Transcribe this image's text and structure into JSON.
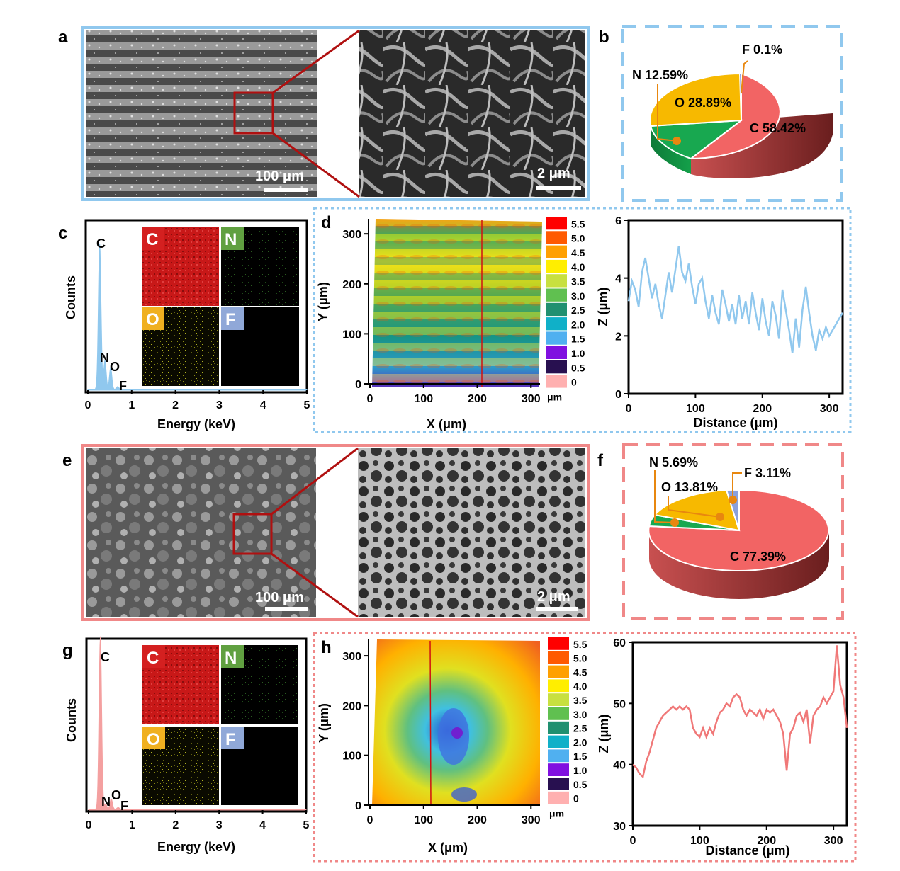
{
  "panel_labels": {
    "a": "a",
    "b": "b",
    "c": "c",
    "d": "d",
    "e": "e",
    "f": "f",
    "g": "g",
    "h": "h"
  },
  "colors": {
    "blue": "#90c8ee",
    "pink": "#f08888",
    "zoom_line": "#b01010",
    "C": "#d42020",
    "N": "#60a040",
    "O": "#f0b020",
    "F": "#90a8d8",
    "slice_C": "#f26464",
    "slice_O": "#f7b900",
    "slice_N": "#18a850",
    "slice_F": "#8aa0dc",
    "leader": "#e8870f"
  },
  "sem": {
    "scale_low": "100 μm",
    "scale_high": "2 μm"
  },
  "eds": {
    "maps": [
      "C",
      "N",
      "O",
      "F"
    ],
    "xlabel": "Energy (keV)",
    "ylabel": "Counts"
  },
  "colorbar": {
    "ticks": [
      "5.5",
      "5.0",
      "4.5",
      "4.0",
      "3.5",
      "3.0",
      "2.5",
      "2.0",
      "1.5",
      "1.0",
      "0.5",
      "0"
    ],
    "unit": "μm",
    "colors": [
      "#ff0000",
      "#ff5a00",
      "#ffa000",
      "#ffee00",
      "#c8e040",
      "#60c050",
      "#209070",
      "#10b0c8",
      "#50b0f0",
      "#8010e0",
      "#281050",
      "#ffb0b0"
    ]
  },
  "chart_data": [
    {
      "type": "pie",
      "panel": "b",
      "slices": [
        {
          "label": "C 58.42%",
          "value": 58.42
        },
        {
          "label": "O 28.89%",
          "value": 28.89
        },
        {
          "label": "N 12.59%",
          "value": 12.59
        },
        {
          "label": "F 0.1%",
          "value": 0.1
        }
      ]
    },
    {
      "type": "line",
      "panel": "c",
      "xlabel": "Energy (keV)",
      "ylabel": "Counts",
      "xlim": [
        0,
        5
      ],
      "xticks": [
        "0",
        "1",
        "2",
        "3",
        "4",
        "5"
      ],
      "peaks": [
        {
          "label": "C",
          "x": 0.27,
          "y": 1.0
        },
        {
          "label": "N",
          "x": 0.39,
          "y": 0.2
        },
        {
          "label": "O",
          "x": 0.52,
          "y": 0.15
        },
        {
          "label": "F",
          "x": 0.68,
          "y": 0.02
        }
      ]
    },
    {
      "type": "heatmap",
      "panel": "d",
      "xlabel": "X (μm)",
      "ylabel": "Y (μm)",
      "xlim": [
        0,
        330
      ],
      "ylim": [
        0,
        330
      ],
      "xticks": [
        "0",
        "100",
        "200",
        "300"
      ],
      "yticks": [
        "0",
        "100",
        "200",
        "300"
      ]
    },
    {
      "type": "line",
      "panel": "d",
      "xlabel": "Distance (μm)",
      "ylabel": "Z (μm)",
      "xlim": [
        0,
        320
      ],
      "ylim": [
        0,
        6
      ],
      "xticks": [
        "0",
        "100",
        "200",
        "300"
      ],
      "yticks": [
        "0",
        "2",
        "4",
        "6"
      ],
      "x": [
        0,
        5,
        10,
        15,
        20,
        25,
        30,
        35,
        40,
        45,
        50,
        55,
        60,
        65,
        70,
        75,
        80,
        85,
        90,
        95,
        100,
        105,
        110,
        115,
        120,
        125,
        130,
        135,
        140,
        145,
        150,
        155,
        160,
        165,
        170,
        175,
        180,
        185,
        190,
        195,
        200,
        205,
        210,
        215,
        220,
        225,
        230,
        235,
        240,
        245,
        250,
        255,
        260,
        265,
        270,
        275,
        280,
        285,
        290,
        295,
        300,
        305,
        310,
        315,
        320
      ],
      "y": [
        3.2,
        3.9,
        3.6,
        3.0,
        4.2,
        4.7,
        4.0,
        3.3,
        3.8,
        3.1,
        2.6,
        3.4,
        4.2,
        3.5,
        4.3,
        5.1,
        4.2,
        3.9,
        4.5,
        3.7,
        3.1,
        3.8,
        4.0,
        3.2,
        2.6,
        3.4,
        2.8,
        2.4,
        3.6,
        3.1,
        2.5,
        3.1,
        2.4,
        3.4,
        2.6,
        3.2,
        2.4,
        3.5,
        2.8,
        2.2,
        3.3,
        2.5,
        2.0,
        3.2,
        2.7,
        1.9,
        3.6,
        2.9,
        2.2,
        1.4,
        2.6,
        1.6,
        2.9,
        3.7,
        2.8,
        2.0,
        1.5,
        2.2,
        1.9,
        2.3,
        2.0,
        2.2,
        2.4,
        2.6,
        2.8
      ]
    },
    {
      "type": "pie",
      "panel": "f",
      "slices": [
        {
          "label": "C 77.39%",
          "value": 77.39
        },
        {
          "label": "O 13.81%",
          "value": 13.81
        },
        {
          "label": "N 5.69%",
          "value": 5.69
        },
        {
          "label": "F 3.11%",
          "value": 3.11
        }
      ]
    },
    {
      "type": "line",
      "panel": "g",
      "xlabel": "Energy (keV)",
      "ylabel": "Counts",
      "xlim": [
        0,
        5
      ],
      "xticks": [
        "0",
        "1",
        "2",
        "3",
        "4",
        "5"
      ],
      "peaks": [
        {
          "label": "C",
          "x": 0.27,
          "y": 1.0
        },
        {
          "label": "N",
          "x": 0.39,
          "y": 0.03
        },
        {
          "label": "O",
          "x": 0.52,
          "y": 0.06
        },
        {
          "label": "F",
          "x": 0.68,
          "y": 0.01
        }
      ]
    },
    {
      "type": "heatmap",
      "panel": "h",
      "xlabel": "X (μm)",
      "ylabel": "Y (μm)",
      "xlim": [
        0,
        330
      ],
      "ylim": [
        0,
        330
      ],
      "xticks": [
        "0",
        "100",
        "200",
        "300"
      ],
      "yticks": [
        "0",
        "100",
        "200",
        "300"
      ]
    },
    {
      "type": "line",
      "panel": "h",
      "xlabel": "Distance (μm)",
      "ylabel": "Z (μm)",
      "xlim": [
        0,
        320
      ],
      "ylim": [
        30,
        60
      ],
      "xticks": [
        "0",
        "100",
        "200",
        "300"
      ],
      "yticks": [
        "30",
        "40",
        "50",
        "60"
      ],
      "x": [
        0,
        5,
        10,
        15,
        20,
        25,
        30,
        35,
        40,
        45,
        50,
        55,
        60,
        65,
        70,
        75,
        80,
        85,
        90,
        95,
        100,
        105,
        110,
        115,
        120,
        125,
        130,
        135,
        140,
        145,
        150,
        155,
        160,
        165,
        170,
        175,
        180,
        185,
        190,
        195,
        200,
        205,
        210,
        215,
        220,
        225,
        230,
        235,
        240,
        245,
        250,
        255,
        260,
        265,
        270,
        275,
        280,
        285,
        290,
        295,
        300,
        305,
        310,
        315,
        320
      ],
      "y": [
        40,
        39.5,
        38.5,
        38,
        40.5,
        42,
        44,
        46,
        47,
        48,
        48.5,
        49,
        49.5,
        49,
        49.5,
        49,
        49.5,
        49,
        46,
        45,
        44.5,
        46,
        44.5,
        46,
        45,
        47,
        48.5,
        49,
        50,
        49.5,
        51,
        51.5,
        51,
        49,
        48,
        49,
        48.5,
        48,
        49,
        47.5,
        49,
        48.5,
        49,
        48,
        47,
        45,
        39,
        45,
        46,
        48,
        48.5,
        47,
        49,
        43.5,
        48,
        49,
        49.5,
        51,
        50,
        51,
        52,
        59.5,
        53,
        51,
        46
      ]
    }
  ]
}
